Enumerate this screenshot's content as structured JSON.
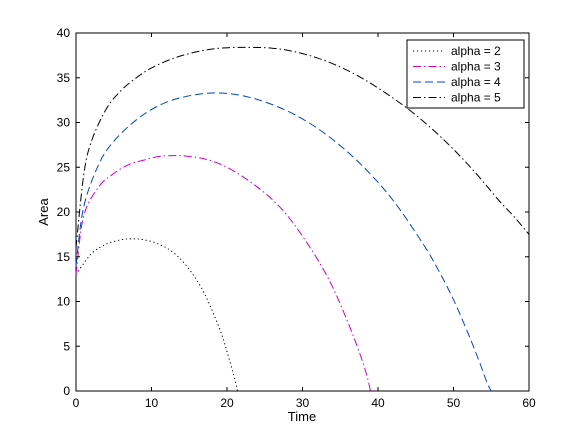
{
  "chart_data": {
    "type": "line",
    "title": "",
    "xlabel": "Time",
    "ylabel": "Area",
    "xlim": [
      0,
      60
    ],
    "ylim": [
      0,
      40
    ],
    "xticks": [
      0,
      10,
      20,
      30,
      40,
      50,
      60
    ],
    "yticks": [
      0,
      5,
      10,
      15,
      20,
      25,
      30,
      35,
      40
    ],
    "grid": false,
    "legend_position": "top-right",
    "series": [
      {
        "name": "alpha = 2",
        "color": "#000000",
        "dash": "dotted",
        "x": [
          0,
          2,
          4,
          6,
          7.5,
          9,
          11,
          13,
          15,
          17,
          19,
          20,
          21,
          21.4
        ],
        "y": [
          13.0,
          15.3,
          16.4,
          16.9,
          17.0,
          16.9,
          16.4,
          15.4,
          13.6,
          10.9,
          7.0,
          4.4,
          1.4,
          0
        ]
      },
      {
        "name": "alpha = 3",
        "color": "#cc00cc",
        "dash": "dashdot",
        "x": [
          0,
          1,
          3,
          5,
          7,
          9,
          11,
          13.5,
          16,
          18,
          20,
          22,
          24,
          26,
          28,
          30,
          32,
          34,
          36,
          37.5,
          38.5,
          39
        ],
        "y": [
          13.0,
          19.5,
          22.8,
          24.3,
          25.3,
          25.8,
          26.2,
          26.3,
          26.1,
          25.7,
          25.0,
          24.0,
          22.8,
          21.4,
          19.6,
          17.3,
          14.7,
          11.6,
          7.7,
          4.4,
          1.8,
          0
        ]
      },
      {
        "name": "alpha = 4",
        "color": "#0044cc",
        "dash": "dashed",
        "x": [
          0,
          1,
          3,
          5,
          8,
          11,
          14,
          18,
          22,
          26,
          30,
          34,
          38,
          42,
          46,
          48,
          50,
          52,
          53.5,
          54.5,
          55
        ],
        "y": [
          14.0,
          20.5,
          25.3,
          27.9,
          30.3,
          31.9,
          32.8,
          33.3,
          33.0,
          32.0,
          30.4,
          28.1,
          25.1,
          21.3,
          16.4,
          13.5,
          10.2,
          6.3,
          3.1,
          0.8,
          0
        ]
      },
      {
        "name": "alpha = 5",
        "color": "#000000",
        "dash": "dashdot",
        "x": [
          0,
          1,
          2,
          4,
          6,
          8,
          10,
          13,
          16,
          19,
          22.5,
          26,
          29,
          32,
          35,
          38,
          41,
          44,
          47,
          50,
          53,
          56,
          58,
          60
        ],
        "y": [
          16.0,
          24.0,
          27.8,
          31.5,
          33.6,
          35.0,
          36.1,
          37.2,
          37.9,
          38.3,
          38.4,
          38.3,
          37.9,
          37.2,
          36.2,
          34.9,
          33.3,
          31.5,
          29.4,
          27.0,
          24.3,
          21.3,
          19.5,
          17.5
        ]
      }
    ]
  }
}
